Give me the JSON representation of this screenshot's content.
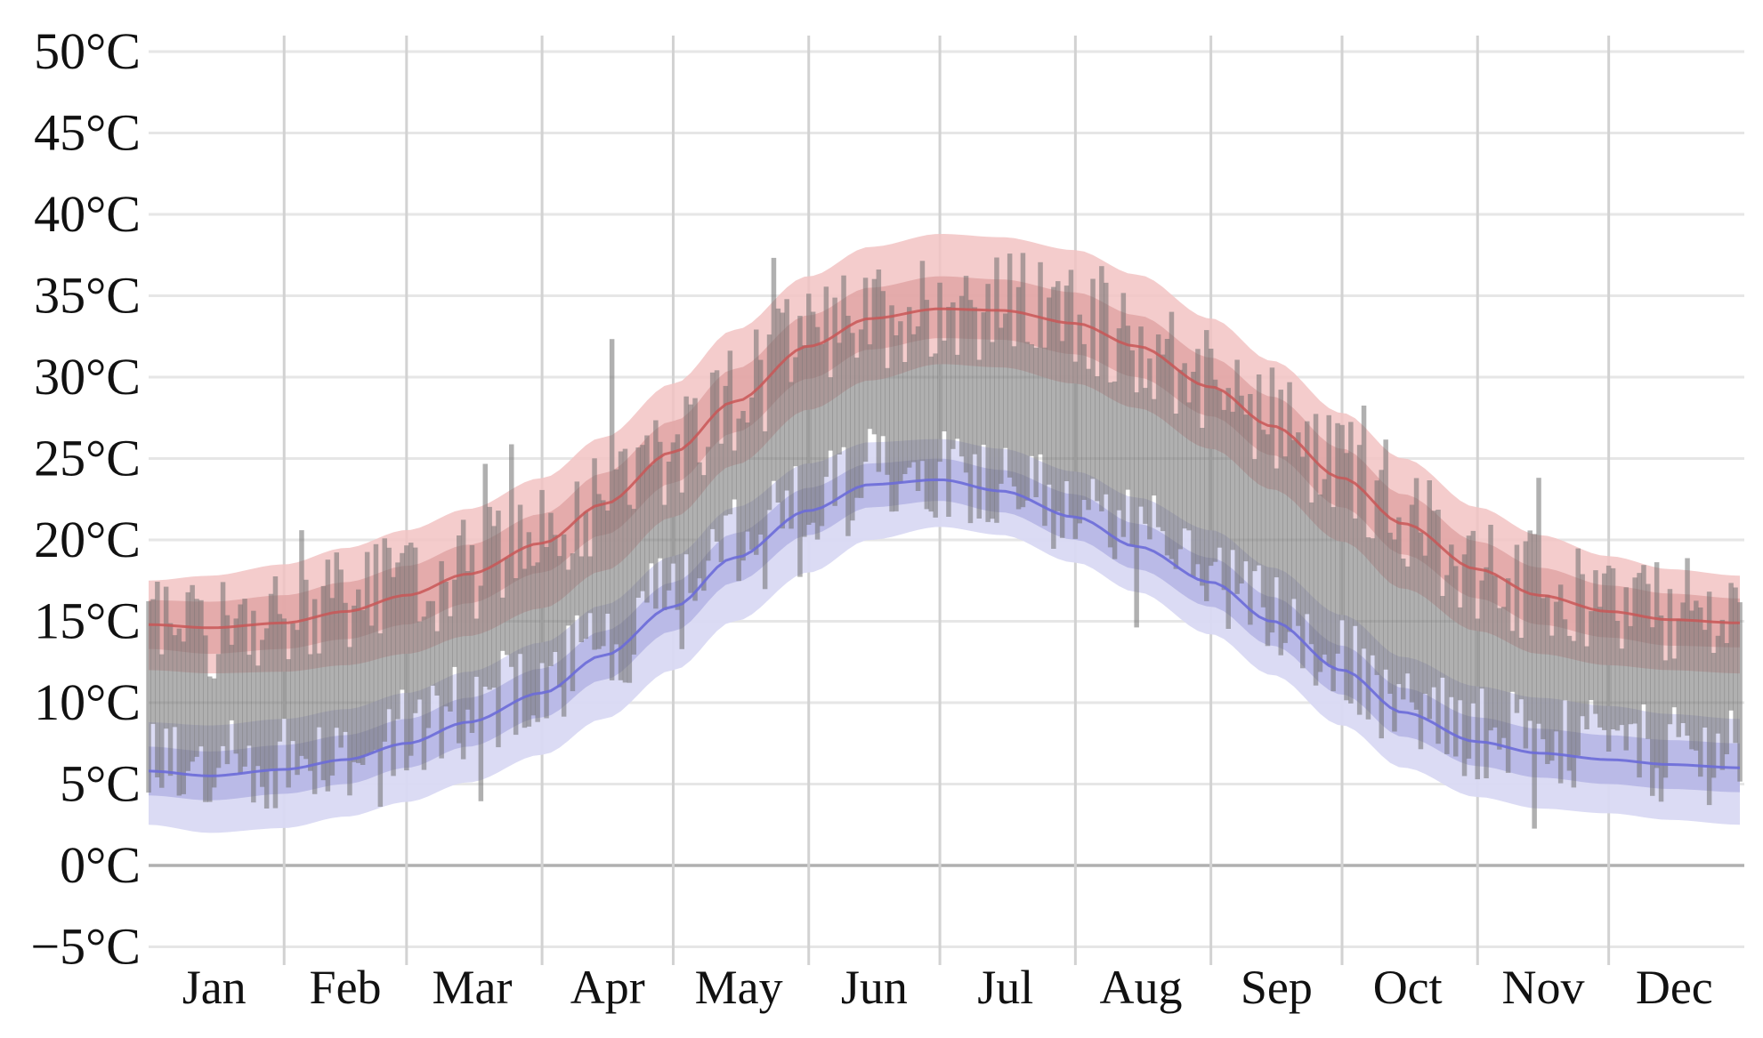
{
  "chart_data": {
    "type": "area",
    "title": "",
    "xlabel": "",
    "ylabel": "",
    "ylim": [
      -7,
      52
    ],
    "yticks": [
      {
        "value": 50,
        "label": "50°C"
      },
      {
        "value": 45,
        "label": "45°C"
      },
      {
        "value": 40,
        "label": "40°C"
      },
      {
        "value": 35,
        "label": "35°C"
      },
      {
        "value": 30,
        "label": "30°C"
      },
      {
        "value": 25,
        "label": "25°C"
      },
      {
        "value": 20,
        "label": "20°C"
      },
      {
        "value": 15,
        "label": "15°C"
      },
      {
        "value": 10,
        "label": "10°C"
      },
      {
        "value": 5,
        "label": "5°C"
      },
      {
        "value": 0,
        "label": "0°C"
      },
      {
        "value": -5,
        "label": "−5°C"
      }
    ],
    "months": [
      "Jan",
      "Feb",
      "Mar",
      "Apr",
      "May",
      "Jun",
      "Jul",
      "Aug",
      "Sep",
      "Oct",
      "Nov",
      "Dec"
    ],
    "day_of_year": [
      1,
      15,
      32,
      46,
      60,
      74,
      91,
      105,
      121,
      135,
      152,
      166,
      182,
      196,
      213,
      227,
      244,
      258,
      274,
      288,
      305,
      319,
      335,
      349,
      365
    ],
    "avg_high": [
      14.8,
      14.6,
      14.9,
      15.6,
      16.6,
      17.9,
      19.8,
      22.2,
      25.4,
      28.5,
      31.9,
      33.6,
      34.2,
      34.1,
      33.3,
      31.9,
      29.4,
      27.0,
      23.8,
      21.0,
      18.2,
      16.6,
      15.6,
      15.1,
      14.9
    ],
    "avg_low": [
      5.8,
      5.5,
      5.9,
      6.5,
      7.5,
      8.8,
      10.6,
      12.9,
      15.9,
      18.9,
      21.8,
      23.4,
      23.7,
      23.0,
      21.4,
      19.6,
      17.4,
      15.0,
      12.0,
      9.4,
      7.6,
      6.9,
      6.5,
      6.2,
      6.0
    ],
    "high_band_outer": [
      [
        17.5,
        12.0
      ],
      [
        17.8,
        11.8
      ],
      [
        18.5,
        11.9
      ],
      [
        19.5,
        12.3
      ],
      [
        20.6,
        13.0
      ],
      [
        21.9,
        14.1
      ],
      [
        23.8,
        15.8
      ],
      [
        26.3,
        18.1
      ],
      [
        29.6,
        21.4
      ],
      [
        32.9,
        24.6
      ],
      [
        36.2,
        28.0
      ],
      [
        38.0,
        29.8
      ],
      [
        38.8,
        30.8
      ],
      [
        38.6,
        30.6
      ],
      [
        37.8,
        29.6
      ],
      [
        36.3,
        28.1
      ],
      [
        33.6,
        25.6
      ],
      [
        31.0,
        23.1
      ],
      [
        27.8,
        19.9
      ],
      [
        25.0,
        17.0
      ],
      [
        22.0,
        14.4
      ],
      [
        20.3,
        13.0
      ],
      [
        19.0,
        12.3
      ],
      [
        18.2,
        12.0
      ],
      [
        17.8,
        11.8
      ]
    ],
    "high_band_inner": [
      [
        16.3,
        13.3
      ],
      [
        16.2,
        13.0
      ],
      [
        16.6,
        13.3
      ],
      [
        17.4,
        13.9
      ],
      [
        18.4,
        14.8
      ],
      [
        19.7,
        16.1
      ],
      [
        21.6,
        18.0
      ],
      [
        24.1,
        20.3
      ],
      [
        27.3,
        23.5
      ],
      [
        30.5,
        26.6
      ],
      [
        33.8,
        29.9
      ],
      [
        35.5,
        31.7
      ],
      [
        36.2,
        32.4
      ],
      [
        36.0,
        32.3
      ],
      [
        35.2,
        31.4
      ],
      [
        33.8,
        30.0
      ],
      [
        31.2,
        27.6
      ],
      [
        28.8,
        25.2
      ],
      [
        25.6,
        22.0
      ],
      [
        22.8,
        19.1
      ],
      [
        19.9,
        16.4
      ],
      [
        18.3,
        14.8
      ],
      [
        17.2,
        14.0
      ],
      [
        16.7,
        13.5
      ],
      [
        16.4,
        13.4
      ]
    ],
    "low_band_outer": [
      [
        8.8,
        2.5
      ],
      [
        8.6,
        2.0
      ],
      [
        9.0,
        2.3
      ],
      [
        9.6,
        3.0
      ],
      [
        10.6,
        3.9
      ],
      [
        11.9,
        5.1
      ],
      [
        13.7,
        6.8
      ],
      [
        16.0,
        9.0
      ],
      [
        19.0,
        12.0
      ],
      [
        22.0,
        15.0
      ],
      [
        24.7,
        18.0
      ],
      [
        26.0,
        20.0
      ],
      [
        26.2,
        20.8
      ],
      [
        25.6,
        20.3
      ],
      [
        24.2,
        18.6
      ],
      [
        22.6,
        16.8
      ],
      [
        20.6,
        14.2
      ],
      [
        18.3,
        11.7
      ],
      [
        15.4,
        8.6
      ],
      [
        12.8,
        6.0
      ],
      [
        11.0,
        4.2
      ],
      [
        10.3,
        3.5
      ],
      [
        9.8,
        3.2
      ],
      [
        9.3,
        2.8
      ],
      [
        9.0,
        2.5
      ]
    ],
    "low_band_inner": [
      [
        7.3,
        4.3
      ],
      [
        7.0,
        4.0
      ],
      [
        7.4,
        4.4
      ],
      [
        8.0,
        5.0
      ],
      [
        9.0,
        6.0
      ],
      [
        10.3,
        7.3
      ],
      [
        12.1,
        9.1
      ],
      [
        14.4,
        11.4
      ],
      [
        17.4,
        14.4
      ],
      [
        20.4,
        17.4
      ],
      [
        23.2,
        20.3
      ],
      [
        24.7,
        22.0
      ],
      [
        25.0,
        22.4
      ],
      [
        24.3,
        21.7
      ],
      [
        22.8,
        20.0
      ],
      [
        21.0,
        18.2
      ],
      [
        18.9,
        15.9
      ],
      [
        16.5,
        13.5
      ],
      [
        13.5,
        10.5
      ],
      [
        10.9,
        7.9
      ],
      [
        9.1,
        6.1
      ],
      [
        8.4,
        5.4
      ],
      [
        8.0,
        5.0
      ],
      [
        7.7,
        4.7
      ],
      [
        7.5,
        4.5
      ]
    ],
    "colors": {
      "high_band_outer": "#f2c3c3",
      "high_band_inner": "#e0a4a4",
      "low_band_outer": "#d9d9f3",
      "low_band_inner": "#b8b8e6",
      "high_line": "#c95656",
      "low_line": "#6b6bd8",
      "daily_bars": "#6f6f6f",
      "grid": "#e6e6e6"
    }
  }
}
